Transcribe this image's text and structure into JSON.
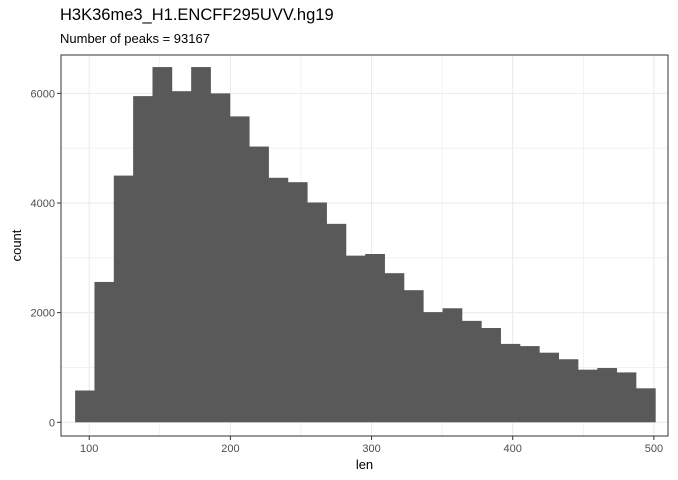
{
  "chart_data": {
    "type": "bar",
    "title": "H3K36me3_H1.ENCFF295UVV.hg19",
    "subtitle": "Number of peaks = 93167",
    "xlabel": "len",
    "ylabel": "count",
    "xlim": [
      80,
      510
    ],
    "ylim": [
      -250,
      6700
    ],
    "x_ticks": [
      100,
      200,
      300,
      400,
      500
    ],
    "y_ticks": [
      0,
      2000,
      4000,
      6000
    ],
    "bin_edges": [
      90,
      103.7,
      117.4,
      131.1,
      144.8,
      158.5,
      172.2,
      185.9,
      199.6,
      213.3,
      227.0,
      240.7,
      254.4,
      268.1,
      281.8,
      295.5,
      309.2,
      322.9,
      336.6,
      350.3,
      364.0,
      377.7,
      391.4,
      405.1,
      418.8,
      432.5,
      446.2,
      459.9,
      473.6,
      487.3,
      501
    ],
    "counts": [
      580,
      2560,
      4500,
      5950,
      6480,
      6040,
      6480,
      6000,
      5580,
      5030,
      4460,
      4380,
      4010,
      3620,
      3040,
      3070,
      2720,
      2410,
      2010,
      2080,
      1850,
      1720,
      1430,
      1390,
      1270,
      1150,
      960,
      990,
      910,
      620
    ],
    "bar_color": "#595959",
    "grid": true,
    "panel_border_color": "#333333",
    "grid_color": "#ebebeb"
  }
}
